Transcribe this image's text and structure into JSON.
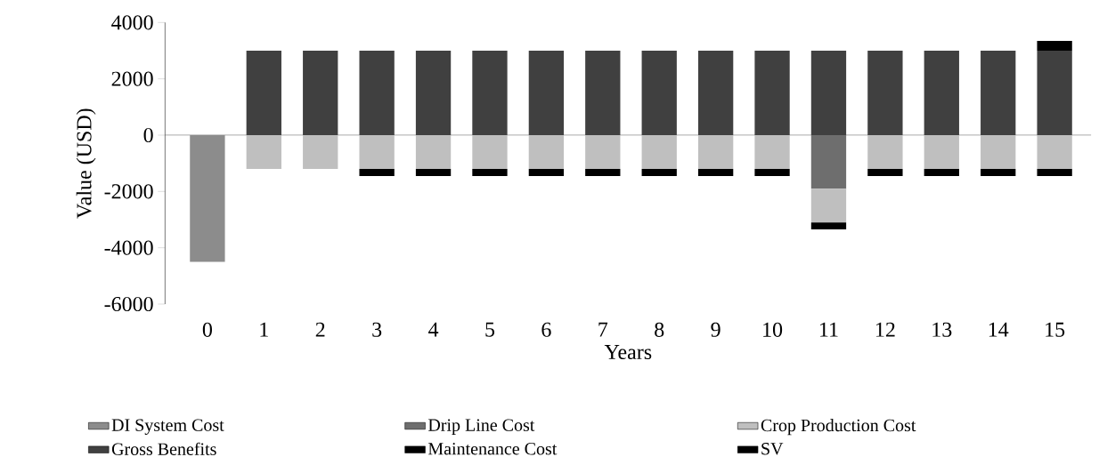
{
  "chart_data": {
    "type": "bar",
    "stacked": true,
    "xlabel": "Years",
    "ylabel": "Value (USD)",
    "categories": [
      "0",
      "1",
      "2",
      "3",
      "4",
      "5",
      "6",
      "7",
      "8",
      "9",
      "10",
      "11",
      "12",
      "13",
      "14",
      "15"
    ],
    "ylim": [
      -6000,
      4000
    ],
    "yticks": [
      -6000,
      -4000,
      -2000,
      0,
      2000,
      4000
    ],
    "legend": "bottom",
    "series": [
      {
        "name": "DI System Cost",
        "color": "#8c8c8c",
        "values": [
          -4500,
          null,
          null,
          null,
          null,
          null,
          null,
          null,
          null,
          null,
          null,
          null,
          null,
          null,
          null,
          null
        ]
      },
      {
        "name": "Drip Line Cost",
        "color": "#6e6e6e",
        "values": [
          null,
          null,
          null,
          null,
          null,
          null,
          null,
          null,
          null,
          null,
          null,
          -1900,
          null,
          null,
          null,
          null
        ]
      },
      {
        "name": "Crop Production Cost",
        "color": "#bfbfbf",
        "values": [
          null,
          -1200,
          -1200,
          -1200,
          -1200,
          -1200,
          -1200,
          -1200,
          -1200,
          -1200,
          -1200,
          -1200,
          -1200,
          -1200,
          -1200,
          -1200
        ]
      },
      {
        "name": "Gross Benefits",
        "color": "#404040",
        "values": [
          null,
          3000,
          3000,
          3000,
          3000,
          3000,
          3000,
          3000,
          3000,
          3000,
          3000,
          3000,
          3000,
          3000,
          3000,
          3000
        ]
      },
      {
        "name": "Maintenance Cost",
        "color": "#000000",
        "values": [
          null,
          null,
          null,
          -250,
          -250,
          -250,
          -250,
          -250,
          -250,
          -250,
          -250,
          -250,
          -250,
          -250,
          -250,
          -250
        ]
      },
      {
        "name": "SV",
        "color": "#000000",
        "values": [
          null,
          null,
          null,
          null,
          null,
          null,
          null,
          null,
          null,
          null,
          null,
          null,
          null,
          null,
          null,
          350
        ]
      }
    ]
  }
}
